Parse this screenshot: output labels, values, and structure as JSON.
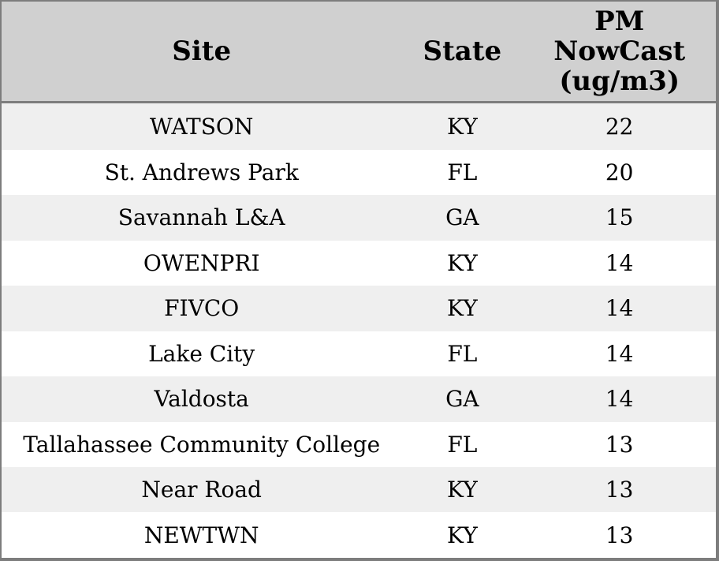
{
  "colors": {
    "header_bg": "#d0d0d0",
    "row_stripe_bg": "#efefef",
    "row_bg": "#ffffff",
    "frame_border": "#7d7d7d",
    "text": "#000000"
  },
  "table": {
    "headers": {
      "site": "Site",
      "state": "State",
      "pm_nowcast": "PM\nNowCast\n(ug/m3)"
    },
    "rows": [
      {
        "site": "WATSON",
        "state": "KY",
        "pm": "22"
      },
      {
        "site": "St. Andrews Park",
        "state": "FL",
        "pm": "20"
      },
      {
        "site": "Savannah L&A",
        "state": "GA",
        "pm": "15"
      },
      {
        "site": "OWENPRI",
        "state": "KY",
        "pm": "14"
      },
      {
        "site": "FIVCO",
        "state": "KY",
        "pm": "14"
      },
      {
        "site": "Lake City",
        "state": "FL",
        "pm": "14"
      },
      {
        "site": "Valdosta",
        "state": "GA",
        "pm": "14"
      },
      {
        "site": "Tallahassee Community College",
        "state": "FL",
        "pm": "13"
      },
      {
        "site": "Near Road",
        "state": "KY",
        "pm": "13"
      },
      {
        "site": "NEWTWN",
        "state": "KY",
        "pm": "13"
      }
    ]
  },
  "chart_data": {
    "type": "table",
    "title": "",
    "columns": [
      "Site",
      "State",
      "PM NowCast (ug/m3)"
    ],
    "rows": [
      [
        "WATSON",
        "KY",
        22
      ],
      [
        "St. Andrews Park",
        "FL",
        20
      ],
      [
        "Savannah L&A",
        "GA",
        15
      ],
      [
        "OWENPRI",
        "KY",
        14
      ],
      [
        "FIVCO",
        "KY",
        14
      ],
      [
        "Lake City",
        "FL",
        14
      ],
      [
        "Valdosta",
        "GA",
        14
      ],
      [
        "Tallahassee Community College",
        "FL",
        13
      ],
      [
        "Near Road",
        "KY",
        13
      ],
      [
        "NEWTWN",
        "KY",
        13
      ]
    ]
  }
}
